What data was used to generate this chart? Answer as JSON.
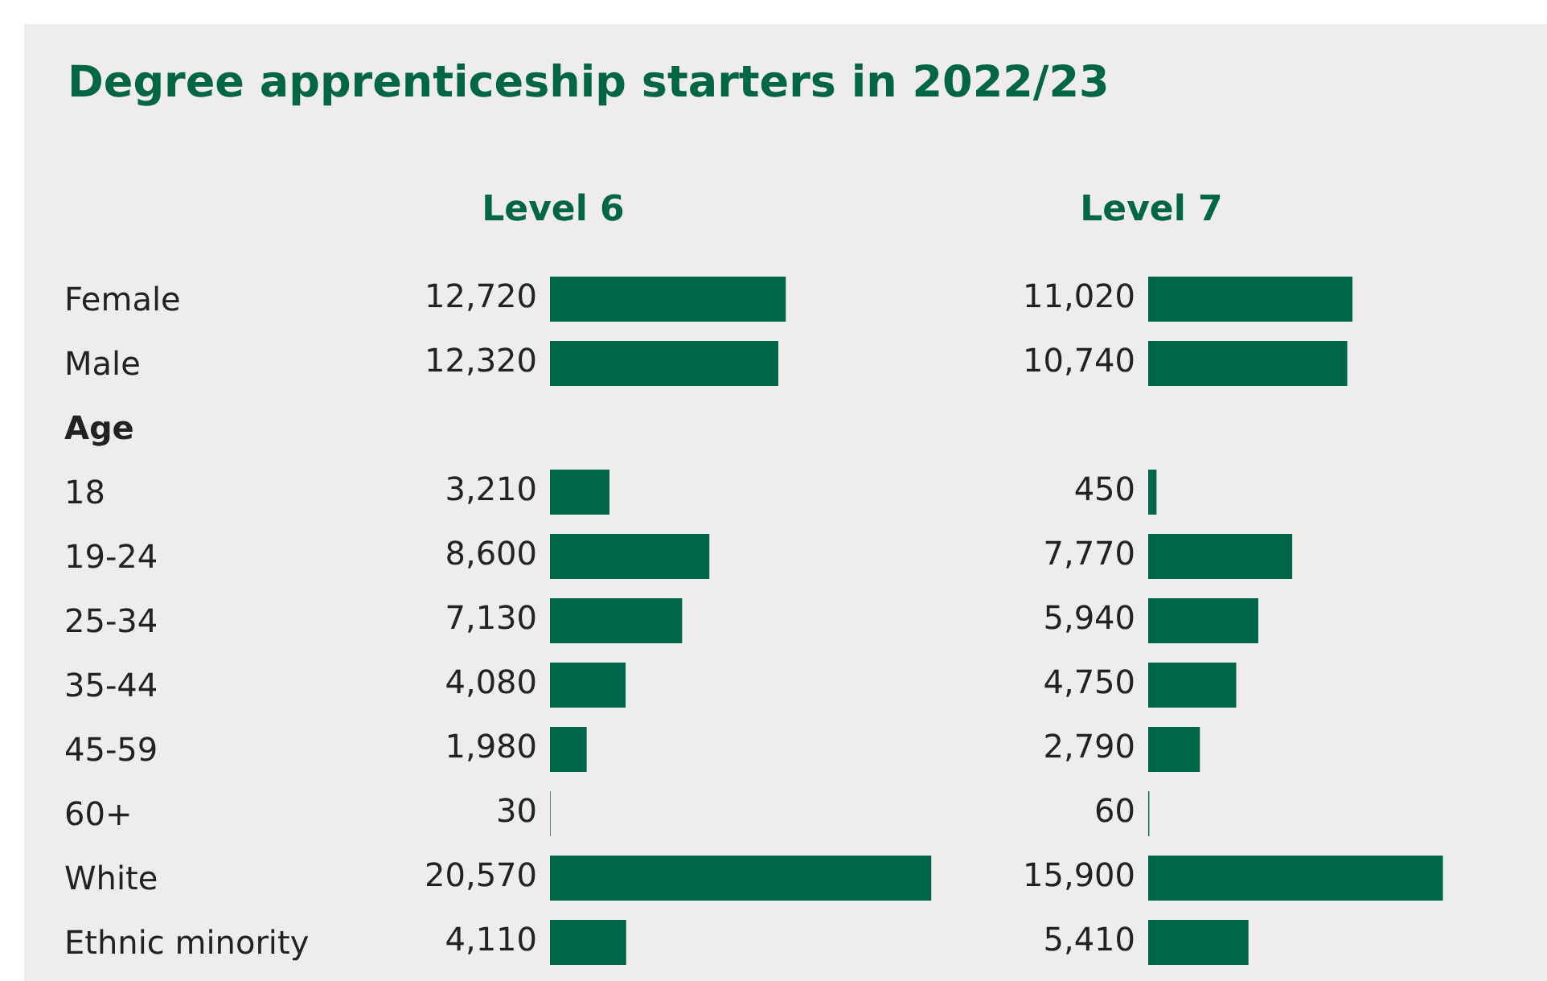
{
  "chart_data": [
    {
      "type": "bar",
      "title": "Degree apprenticeship starters in 2022/23",
      "subtitle": "Level 6",
      "orientation": "horizontal",
      "categories": [
        "Female",
        "Male",
        "Age",
        "18",
        "19-24",
        "25-34",
        "35-44",
        "45-59",
        "60+",
        "White",
        "Ethnic minority"
      ],
      "values": [
        12720,
        12320,
        null,
        3210,
        8600,
        7130,
        4080,
        1980,
        30,
        20570,
        4110
      ],
      "value_labels": [
        "12,720",
        "12,320",
        null,
        "3,210",
        "8,600",
        "7,130",
        "4,080",
        "1,980",
        "30",
        "20,570",
        "4,110"
      ],
      "color": "#00664a",
      "grid": false,
      "legend": false,
      "tick_labels": "y"
    },
    {
      "type": "bar",
      "title": "Level 7",
      "orientation": "horizontal",
      "values": [
        11020,
        10740,
        null,
        450,
        7770,
        5940,
        4750,
        2790,
        60,
        15900,
        5410
      ],
      "value_labels": [
        "11,020",
        "10,740",
        null,
        "450",
        "7,770",
        "5,940",
        "4,750",
        "2,790",
        "60",
        "15,900",
        "5,410"
      ],
      "color": "#00664a",
      "grid": false,
      "legend": false,
      "tick_labels": false
    }
  ]
}
